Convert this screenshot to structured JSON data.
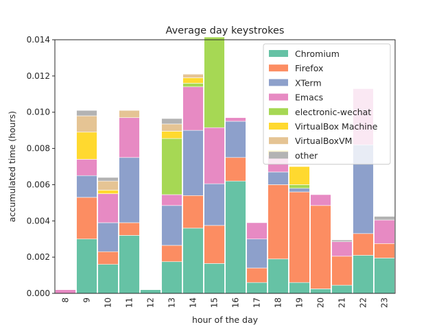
{
  "chart_data": {
    "type": "bar",
    "stacked": true,
    "title": "Average day keystrokes",
    "xlabel": "hour of the day",
    "ylabel": "accumulated time (hours)",
    "ylim": [
      0,
      0.014
    ],
    "yticks": [
      "0.000",
      "0.002",
      "0.004",
      "0.006",
      "0.008",
      "0.010",
      "0.012",
      "0.014"
    ],
    "ytick_values": [
      0,
      0.002,
      0.004,
      0.006,
      0.008,
      0.01,
      0.012,
      0.014
    ],
    "categories": [
      "8",
      "9",
      "10",
      "11",
      "12",
      "13",
      "14",
      "15",
      "16",
      "17",
      "18",
      "19",
      "20",
      "21",
      "22",
      "23"
    ],
    "grid": false,
    "legend_position": "top-right",
    "series": [
      {
        "name": "Chromium",
        "color": "#66c2a5",
        "values": [
          0,
          0.003,
          0.0016,
          0.0032,
          0.0002,
          0.00175,
          0.0036,
          0.00165,
          0.0062,
          0.0006,
          0.0019,
          0.0006,
          0.00025,
          0.00045,
          0.0021,
          0.00195
        ]
      },
      {
        "name": "Firefox",
        "color": "#fc8d62",
        "values": [
          0,
          0.0023,
          0.0007,
          0.0007,
          0,
          0.0009,
          0.0018,
          0.0021,
          0.0013,
          0.0008,
          0.0041,
          0.005,
          0.0046,
          0.0016,
          0.0012,
          0.0008
        ]
      },
      {
        "name": "XTerm",
        "color": "#8da0cb",
        "values": [
          0,
          0.0012,
          0.0016,
          0.0036,
          0,
          0.0022,
          0.0036,
          0.0023,
          0.002,
          0.0016,
          0.0007,
          0.0002,
          0,
          0,
          0.0049,
          0
        ]
      },
      {
        "name": "Emacs",
        "color": "#e78ac3",
        "values": [
          0.0002,
          0.0009,
          0.0016,
          0.0022,
          0,
          0.0006,
          0.0024,
          0.0031,
          0.0002,
          0.0009,
          0.0009,
          0,
          0.0006,
          0.0008,
          0.0031,
          0.0013
        ]
      },
      {
        "name": "electronic-wechat",
        "color": "#a6d854",
        "values": [
          0,
          0,
          0,
          0,
          0,
          0.0031,
          0.0002,
          0.005,
          0,
          0,
          0,
          0.0002,
          0,
          0,
          0,
          0
        ]
      },
      {
        "name": "VirtualBox Machine",
        "color": "#ffd92f",
        "values": [
          0,
          0.0015,
          0.0002,
          0,
          0,
          0.0004,
          0.0003,
          0,
          0,
          0,
          0.0003,
          0.001,
          0,
          0,
          0,
          0
        ]
      },
      {
        "name": "VirtualBoxVM",
        "color": "#e5c494",
        "values": [
          0,
          0.0009,
          0.0005,
          0.0004,
          0,
          0.0004,
          0.0002,
          0,
          0,
          0,
          0,
          0,
          0,
          0,
          0,
          0
        ]
      },
      {
        "name": "other",
        "color": "#b3b3b3",
        "values": [
          0,
          0.0003,
          0.0002,
          0,
          0,
          0.0003,
          0,
          0,
          0,
          0,
          0,
          0,
          0,
          0.0001,
          0,
          0.0002
        ]
      }
    ]
  }
}
